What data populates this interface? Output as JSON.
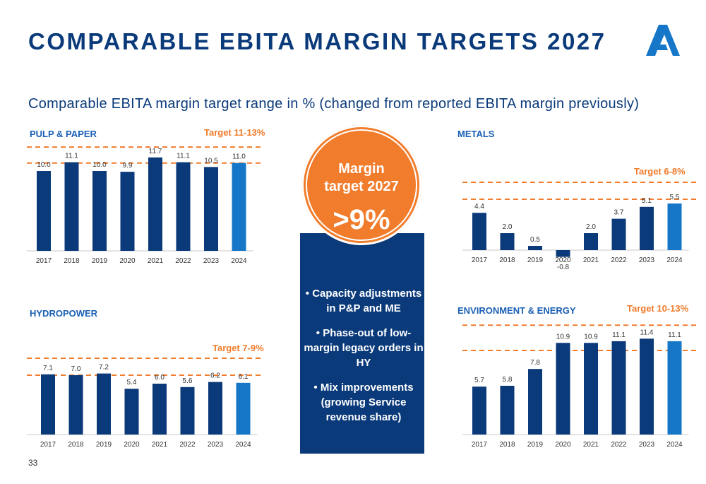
{
  "title": "COMPARABLE EBITA MARGIN TARGETS 2027",
  "subtitle": "Comparable EBITA margin target range in % (changed from reported EBITA margin previously)",
  "page_number": "33",
  "colors": {
    "bar": "#0a3a7a",
    "bar_highlight": "#1677c9",
    "target": "#f07c2c",
    "label": "#1a5fb4"
  },
  "center": {
    "circle_line1": "Margin",
    "circle_line2": "target 2027",
    "circle_value": ">9%",
    "bullets": [
      "Capacity adjustments in P&P and ME",
      "Phase-out of low-margin legacy orders in HY",
      "Mix improvements (growing Service revenue share)"
    ]
  },
  "chart_data": [
    {
      "id": "pulp",
      "type": "bar",
      "title": "PULP & PAPER",
      "target": "Target 11-13%",
      "target_range": [
        11,
        13
      ],
      "categories": [
        "2017",
        "2018",
        "2019",
        "2020",
        "2021",
        "2022",
        "2023",
        "2024"
      ],
      "values": [
        10.0,
        11.1,
        10.0,
        9.9,
        11.7,
        11.1,
        10.5,
        11.0
      ],
      "labels": [
        "10.0",
        "11.1",
        "10.0",
        "9.9",
        "11.7",
        "11.1",
        "10.5",
        "11.0"
      ],
      "highlight_last": true
    },
    {
      "id": "metals",
      "type": "bar",
      "title": "METALS",
      "target": "Target 6-8%",
      "target_range": [
        6,
        8
      ],
      "categories": [
        "2017",
        "2018",
        "2019",
        "2020",
        "2021",
        "2022",
        "2023",
        "2024"
      ],
      "values": [
        4.4,
        2.0,
        0.5,
        -0.8,
        2.0,
        3.7,
        5.1,
        5.5
      ],
      "labels": [
        "4.4",
        "2.0",
        "0.5",
        "-0.8",
        "2.0",
        "3.7",
        "5.1",
        "5.5"
      ],
      "highlight_last": true
    },
    {
      "id": "hydro",
      "type": "bar",
      "title": "HYDROPOWER",
      "target": "Target 7-9%",
      "target_range": [
        7,
        9
      ],
      "categories": [
        "2017",
        "2018",
        "2019",
        "2020",
        "2021",
        "2022",
        "2023",
        "2024"
      ],
      "values": [
        7.1,
        7.0,
        7.2,
        5.4,
        6.0,
        5.6,
        6.2,
        6.1
      ],
      "labels": [
        "7.1",
        "7.0",
        "7.2",
        "5.4",
        "6.0",
        "5.6",
        "6.2",
        "6.1"
      ],
      "highlight_last": true
    },
    {
      "id": "env",
      "type": "bar",
      "title": "ENVIRONMENT & ENERGY",
      "target": "Target 10-13%",
      "target_range": [
        10,
        13
      ],
      "categories": [
        "2017",
        "2018",
        "2019",
        "2020",
        "2021",
        "2022",
        "2023",
        "2024"
      ],
      "values": [
        5.7,
        5.8,
        7.8,
        10.9,
        10.9,
        11.1,
        11.4,
        11.1
      ],
      "labels": [
        "5.7",
        "5.8",
        "7.8",
        "10.9",
        "10.9",
        "11.1",
        "11.4",
        "11.1"
      ],
      "highlight_last": true
    }
  ]
}
